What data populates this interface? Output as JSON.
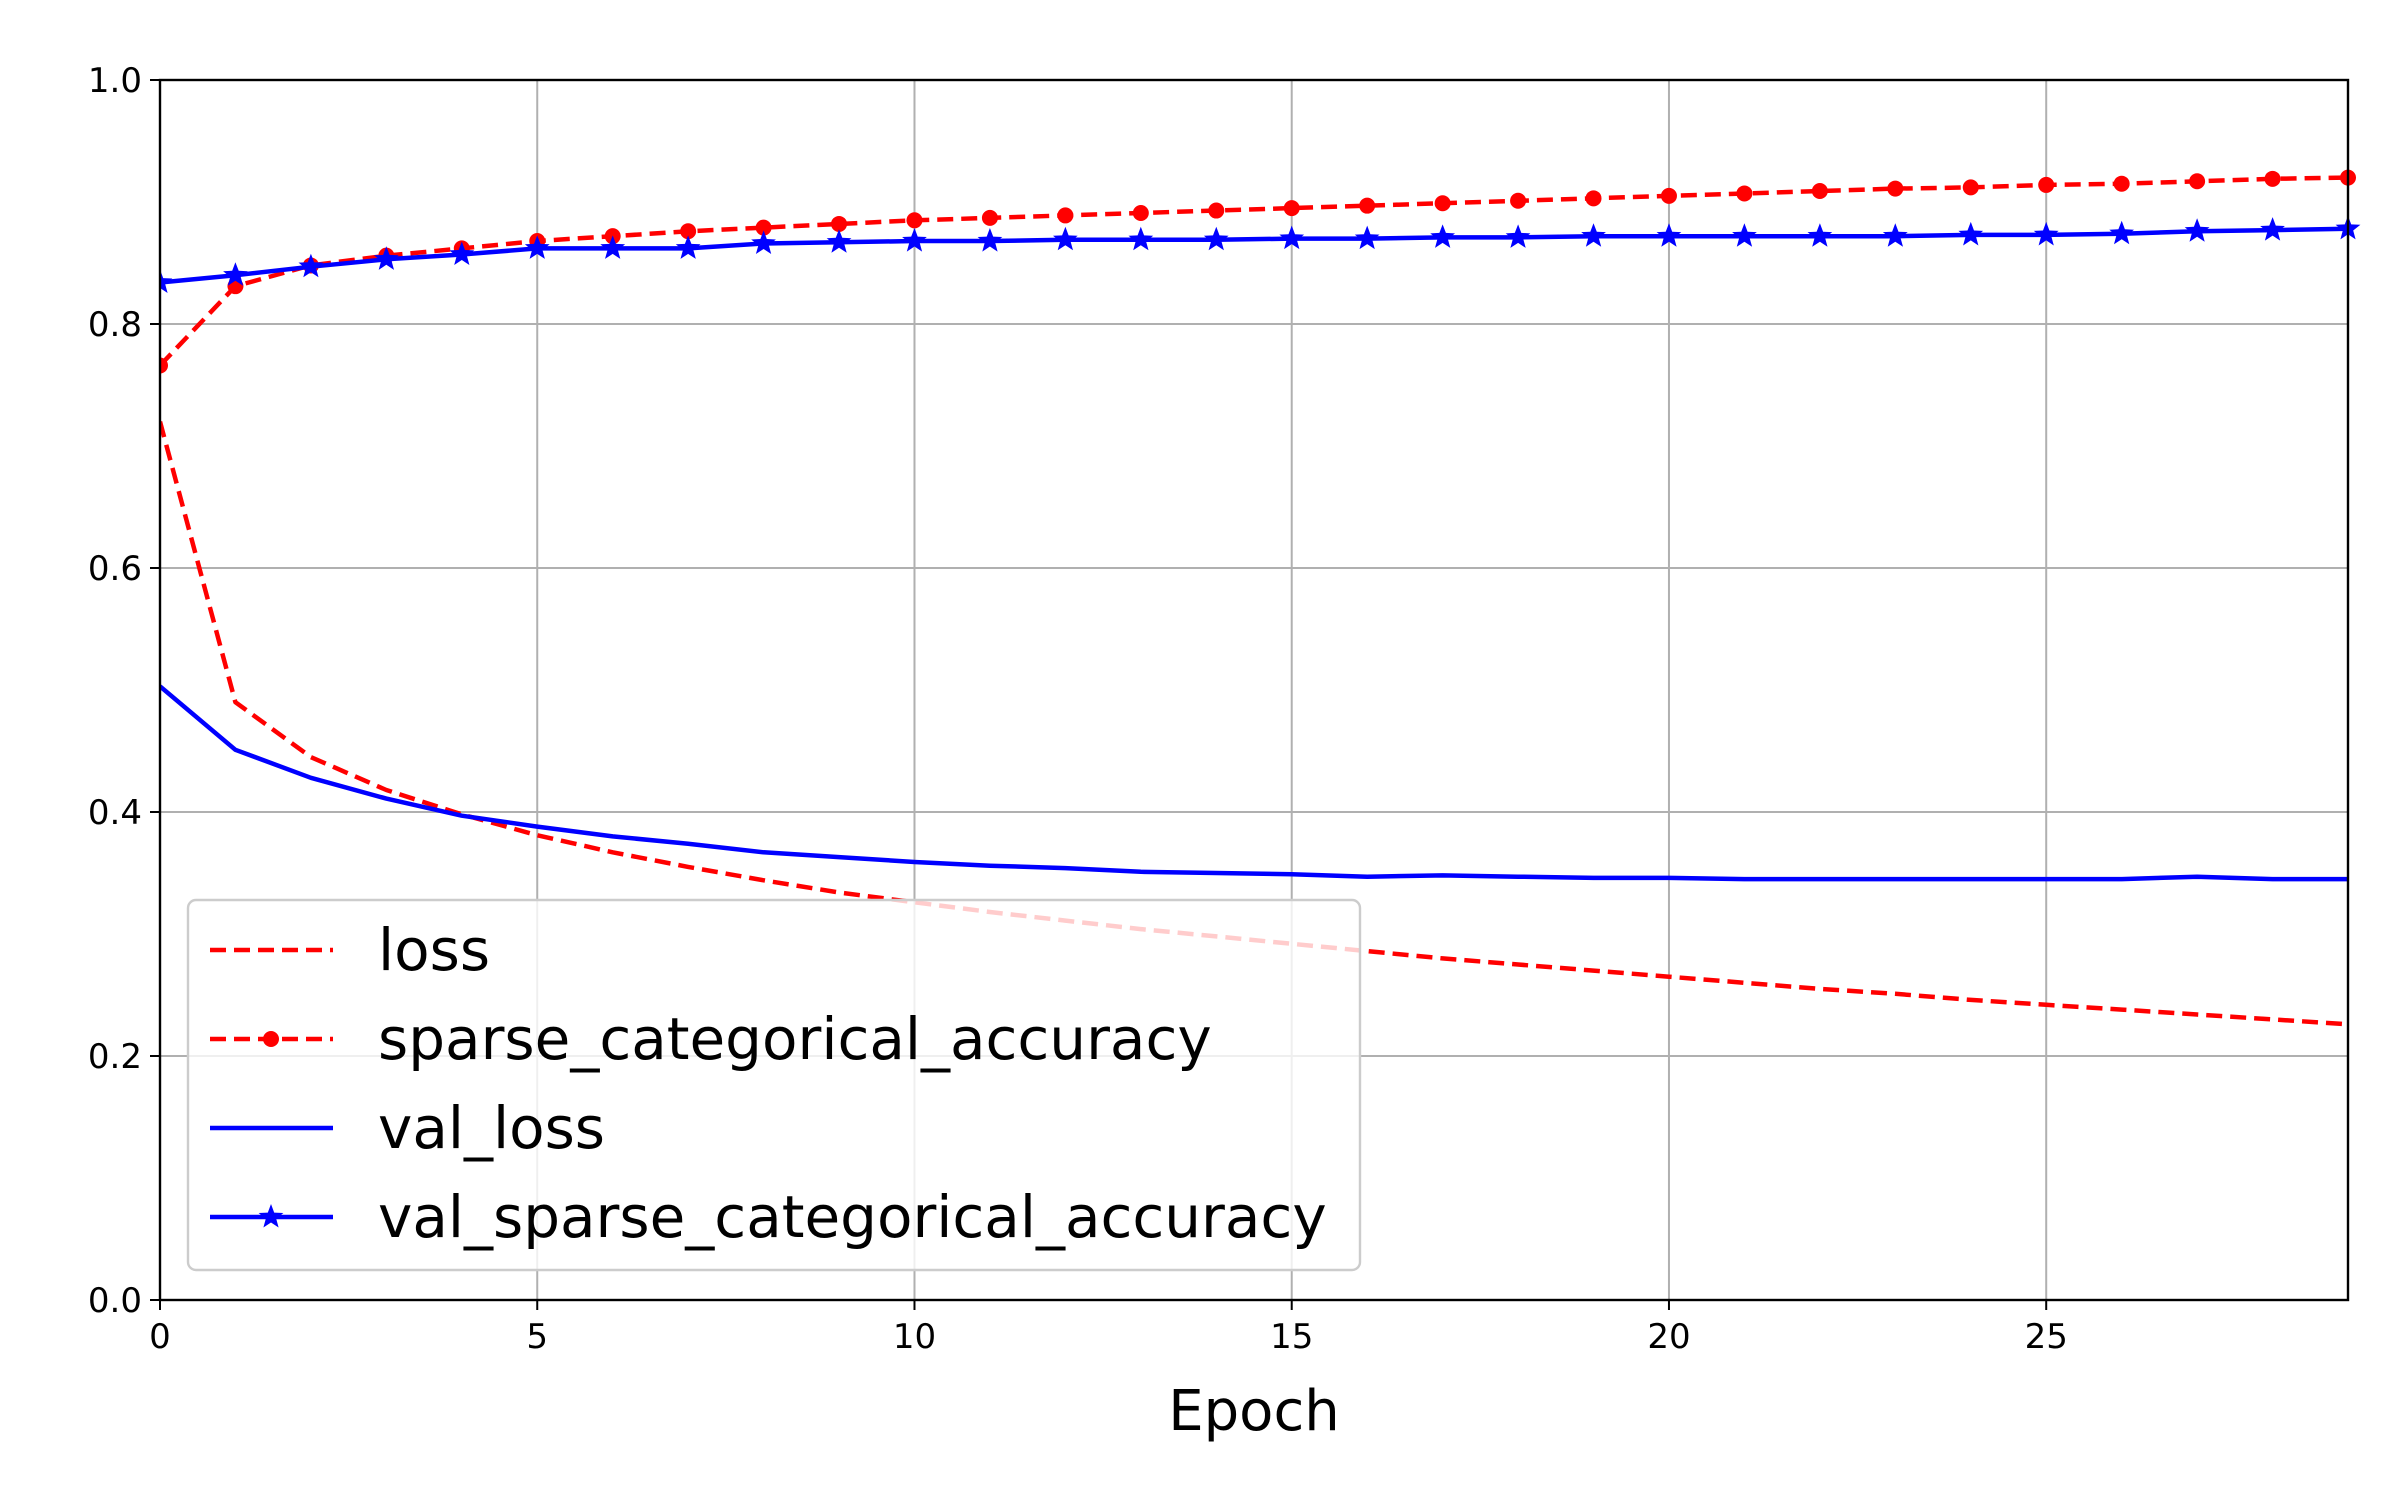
{
  "chart_data": {
    "type": "line",
    "title": "",
    "xlabel": "Epoch",
    "ylabel": "",
    "xlim": [
      0,
      29
    ],
    "ylim": [
      0,
      1
    ],
    "grid": true,
    "legend_position": "lower-left",
    "x_ticks": [
      "0",
      "5",
      "10",
      "15",
      "20",
      "25"
    ],
    "y_ticks": [
      "0.0",
      "0.2",
      "0.4",
      "0.6",
      "0.8",
      "1.0"
    ],
    "x": [
      0,
      1,
      2,
      3,
      4,
      5,
      6,
      7,
      8,
      9,
      10,
      11,
      12,
      13,
      14,
      15,
      16,
      17,
      18,
      19,
      20,
      21,
      22,
      23,
      24,
      25,
      26,
      27,
      28,
      29
    ],
    "series": [
      {
        "name": "loss",
        "color": "#ff0000",
        "dash": true,
        "marker": "none",
        "values": [
          0.72,
          0.49,
          0.445,
          0.418,
          0.398,
          0.381,
          0.367,
          0.355,
          0.344,
          0.334,
          0.326,
          0.318,
          0.311,
          0.304,
          0.298,
          0.292,
          0.286,
          0.28,
          0.275,
          0.27,
          0.265,
          0.26,
          0.255,
          0.251,
          0.246,
          0.242,
          0.238,
          0.234,
          0.23,
          0.226
        ]
      },
      {
        "name": "sparse_categorical_accuracy",
        "color": "#ff0000",
        "dash": true,
        "marker": "dot",
        "values": [
          0.766,
          0.831,
          0.848,
          0.856,
          0.862,
          0.868,
          0.872,
          0.876,
          0.879,
          0.882,
          0.885,
          0.887,
          0.889,
          0.891,
          0.893,
          0.895,
          0.897,
          0.899,
          0.901,
          0.903,
          0.905,
          0.907,
          0.909,
          0.911,
          0.912,
          0.914,
          0.915,
          0.917,
          0.919,
          0.92
        ]
      },
      {
        "name": "val_loss",
        "color": "#0000ff",
        "dash": false,
        "marker": "none",
        "values": [
          0.503,
          0.451,
          0.428,
          0.411,
          0.397,
          0.388,
          0.38,
          0.374,
          0.367,
          0.363,
          0.359,
          0.356,
          0.354,
          0.351,
          0.35,
          0.349,
          0.347,
          0.348,
          0.347,
          0.346,
          0.346,
          0.345,
          0.345,
          0.345,
          0.345,
          0.345,
          0.345,
          0.347,
          0.345,
          0.345
        ]
      },
      {
        "name": "val_sparse_categorical_accuracy",
        "color": "#0000ff",
        "dash": false,
        "marker": "star",
        "values": [
          0.834,
          0.84,
          0.847,
          0.853,
          0.857,
          0.862,
          0.862,
          0.862,
          0.866,
          0.867,
          0.868,
          0.868,
          0.869,
          0.869,
          0.869,
          0.87,
          0.87,
          0.871,
          0.871,
          0.872,
          0.872,
          0.872,
          0.872,
          0.872,
          0.873,
          0.873,
          0.874,
          0.876,
          0.877,
          0.878
        ]
      }
    ]
  }
}
